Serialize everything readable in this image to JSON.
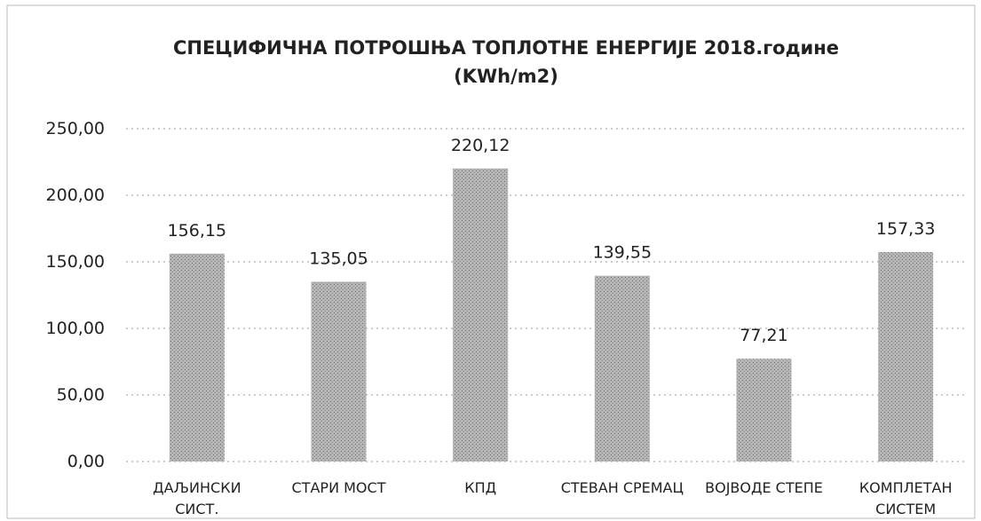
{
  "chart_data": {
    "type": "bar",
    "title": "СПЕЦИФИЧНА ПОТРОШЊА ТОПЛОТНЕ ЕНЕРГИЈЕ 2018.године\n(KWh/m2)",
    "categories": [
      "ДАЉИНСКИ\nСИСТ.",
      "СТАРИ МОСТ",
      "КПД",
      "СТЕВАН СРЕМАЦ",
      "ВОЈВОДЕ СТЕПЕ",
      "КОМПЛЕТАН\nСИСТЕМ"
    ],
    "values": [
      156.15,
      135.05,
      220.12,
      139.55,
      77.21,
      157.33
    ],
    "value_labels": [
      "156,15",
      "135,05",
      "220,12",
      "139,55",
      "77,21",
      "157,33"
    ],
    "color": "#a9a9a9",
    "ylim": [
      0,
      250
    ],
    "yticks": [
      {
        "value": 0,
        "label": "0,00"
      },
      {
        "value": 50,
        "label": "50,00"
      },
      {
        "value": 100,
        "label": "100,00"
      },
      {
        "value": 150,
        "label": "150,00"
      },
      {
        "value": 200,
        "label": "200,00"
      },
      {
        "value": 250,
        "label": "250,00"
      }
    ],
    "grid": true
  }
}
